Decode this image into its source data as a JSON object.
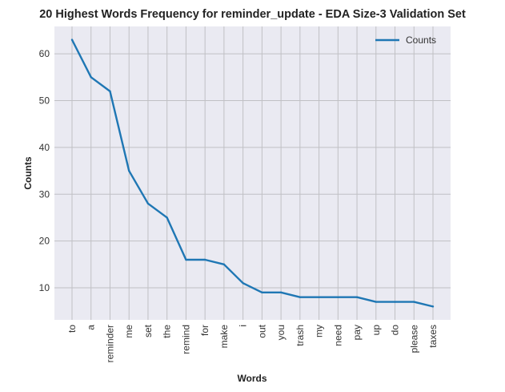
{
  "chart_data": {
    "type": "line",
    "title": "20 Highest Words Frequency for reminder_update - EDA Size-3 Validation Set",
    "xlabel": "Words",
    "ylabel": "Counts",
    "categories": [
      "to",
      "a",
      "reminder",
      "me",
      "set",
      "the",
      "remind",
      "for",
      "make",
      "i",
      "out",
      "you",
      "trash",
      "my",
      "need",
      "pay",
      "up",
      "do",
      "please",
      "taxes"
    ],
    "series": [
      {
        "name": "Counts",
        "values": [
          63,
          55,
          52,
          35,
          28,
          25,
          16,
          16,
          15,
          11,
          9,
          9,
          8,
          8,
          8,
          8,
          7,
          7,
          7,
          6
        ],
        "color": "#1f77b4"
      }
    ],
    "ylim": [
      3.15,
      65.85
    ],
    "yticks": [
      10,
      20,
      30,
      40,
      50,
      60
    ],
    "grid": true,
    "legend": "top-right",
    "colors": {
      "plot_bg": "#eaeaf2",
      "grid": "#c0c0c4"
    }
  }
}
